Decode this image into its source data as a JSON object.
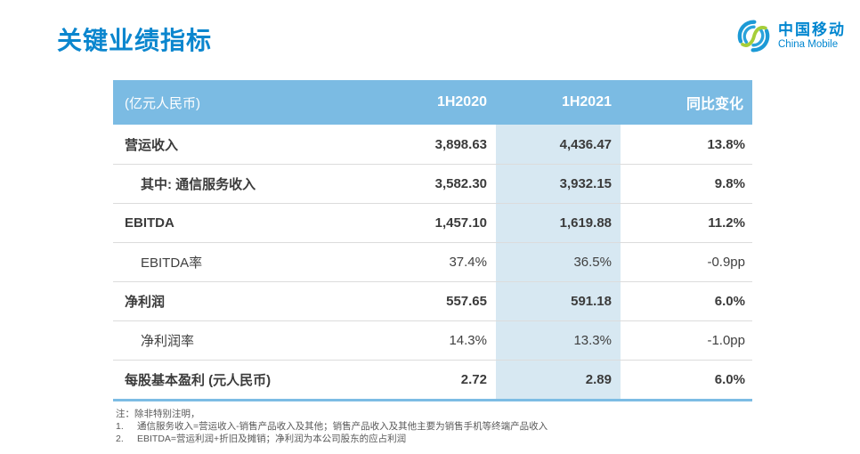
{
  "page": {
    "title": "关键业绩指标"
  },
  "logo": {
    "name_cn": "中国移动",
    "name_en": "China Mobile"
  },
  "colors": {
    "brand_blue": "#0b86ce",
    "table_header_bg": "#7bbbe3",
    "highlight_column_bg": "#d7e8f2",
    "bottom_border_blue": "#7cbce4",
    "text_dark": "#404040",
    "note_gray": "#595959"
  },
  "chart_data": {
    "type": "table",
    "title": "关键业绩指标",
    "unit_header": "(亿元人民币)",
    "columns": [
      "1H2020",
      "1H2021",
      "同比变化"
    ],
    "highlight_column": "1H2021",
    "rows": [
      {
        "label": "营运收入",
        "indent": false,
        "bold": true,
        "values": [
          "3,898.63",
          "4,436.47",
          "13.8%"
        ]
      },
      {
        "label": "其中: 通信服务收入",
        "indent": true,
        "bold": true,
        "values": [
          "3,582.30",
          "3,932.15",
          "9.8%"
        ]
      },
      {
        "label": "EBITDA",
        "indent": false,
        "bold": true,
        "values": [
          "1,457.10",
          "1,619.88",
          "11.2%"
        ]
      },
      {
        "label": "EBITDA率",
        "indent": true,
        "bold": false,
        "values": [
          "37.4%",
          "36.5%",
          "-0.9pp"
        ]
      },
      {
        "label": "净利润",
        "indent": false,
        "bold": true,
        "values": [
          "557.65",
          "591.18",
          "6.0%"
        ]
      },
      {
        "label": "净利润率",
        "indent": true,
        "bold": false,
        "values": [
          "14.3%",
          "13.3%",
          "-1.0pp"
        ]
      },
      {
        "label": "每股基本盈利 (元人民币)",
        "indent": false,
        "bold": true,
        "values": [
          "2.72",
          "2.89",
          "6.0%"
        ]
      }
    ]
  },
  "notes": {
    "intro": "注：除非特别注明，",
    "items": [
      {
        "num": "1.",
        "text": "通信服务收入=营运收入-销售产品收入及其他；销售产品收入及其他主要为销售手机等终端产品收入"
      },
      {
        "num": "2.",
        "text": "EBITDA=营运利润+折旧及摊销；净利润为本公司股东的应占利润"
      }
    ]
  }
}
